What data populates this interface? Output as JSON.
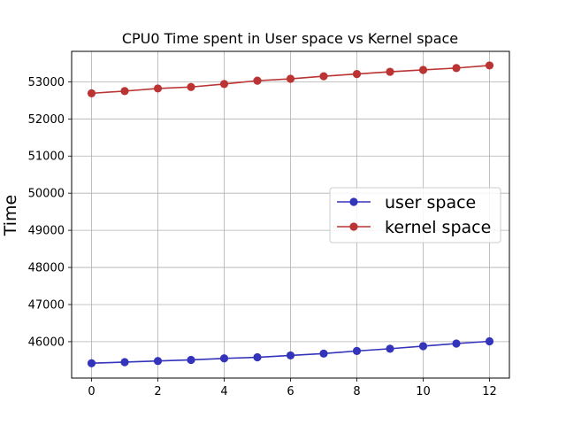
{
  "chart_data": {
    "type": "line",
    "title": "CPU0 Time spent in User space vs Kernel space",
    "xlabel": "",
    "ylabel": "Time",
    "x": [
      0,
      1,
      2,
      3,
      4,
      5,
      6,
      7,
      8,
      9,
      10,
      11,
      12
    ],
    "xticks": [
      0,
      2,
      4,
      6,
      8,
      10,
      12
    ],
    "yticks": [
      46000,
      47000,
      48000,
      49000,
      50000,
      51000,
      52000,
      53000
    ],
    "xlim": [
      -0.6,
      12.6
    ],
    "ylim": [
      45020,
      53820
    ],
    "grid": true,
    "legend_position": "center-right",
    "series": [
      {
        "name": "user space",
        "color": "#3333bb",
        "values": [
          45420,
          45450,
          45480,
          45510,
          45550,
          45580,
          45630,
          45680,
          45750,
          45810,
          45880,
          45950,
          46010
        ]
      },
      {
        "name": "kernel space",
        "color": "#bb3333",
        "values": [
          52690,
          52750,
          52820,
          52860,
          52940,
          53030,
          53080,
          53150,
          53210,
          53270,
          53320,
          53370,
          53440
        ]
      }
    ]
  }
}
